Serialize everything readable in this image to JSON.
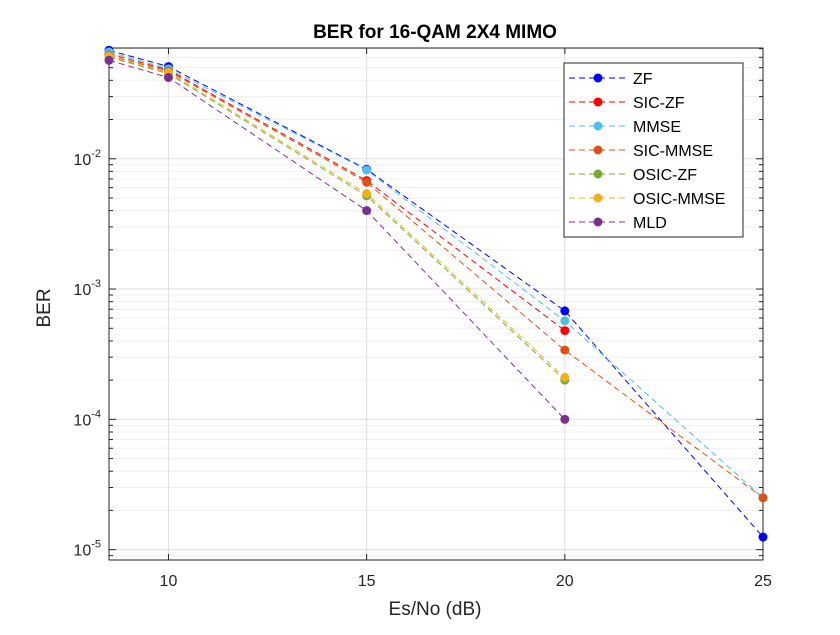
{
  "chart_data": {
    "type": "line",
    "title": "BER for 16-QAM 2X4 MIMO",
    "xlabel": "Es/No (dB)",
    "ylabel": "BER",
    "xscale": "linear",
    "yscale": "log",
    "xlim": [
      8.5,
      25
    ],
    "ylim": [
      8.33e-06,
      0.0708
    ],
    "grid": true,
    "legend_position": "top-right",
    "x_ticks": [
      10,
      15,
      20,
      25
    ],
    "x_tick_labels": [
      "10",
      "15",
      "20",
      "25"
    ],
    "y_ticks": [
      1e-05,
      0.0001,
      0.001,
      0.01
    ],
    "y_tick_labels": [
      {
        "base": "10",
        "exp": "-5"
      },
      {
        "base": "10",
        "exp": "-4"
      },
      {
        "base": "10",
        "exp": "-3"
      },
      {
        "base": "10",
        "exp": "-2"
      }
    ],
    "series": [
      {
        "name": "ZF",
        "color": "#0000ff",
        "x": [
          8.5,
          10,
          15,
          20,
          25
        ],
        "y": [
          0.068,
          0.051,
          0.0083,
          0.00068,
          1.25e-05
        ]
      },
      {
        "name": "SIC-ZF",
        "color": "#ff0000",
        "x": [
          8.5,
          10,
          15,
          20
        ],
        "y": [
          0.064,
          0.048,
          0.0068,
          0.00048
        ]
      },
      {
        "name": "MMSE",
        "color": "#4dbeee",
        "x": [
          8.5,
          10,
          15,
          20,
          25
        ],
        "y": [
          0.066,
          0.049,
          0.0082,
          0.00057,
          2.5e-05
        ]
      },
      {
        "name": "SIC-MMSE",
        "color": "#d95319",
        "x": [
          8.5,
          10,
          15,
          20,
          25
        ],
        "y": [
          0.062,
          0.047,
          0.0066,
          0.00034,
          2.5e-05
        ]
      },
      {
        "name": "OSIC-ZF",
        "color": "#77ac30",
        "x": [
          8.5,
          10,
          15,
          20
        ],
        "y": [
          0.06,
          0.045,
          0.0052,
          0.0002
        ]
      },
      {
        "name": "OSIC-MMSE",
        "color": "#edb120",
        "x": [
          8.5,
          10,
          15,
          20
        ],
        "y": [
          0.061,
          0.046,
          0.0054,
          0.00021
        ]
      },
      {
        "name": "MLD",
        "color": "#7e2f8e",
        "x": [
          8.5,
          10,
          15,
          20
        ],
        "y": [
          0.057,
          0.042,
          0.004,
          0.0001
        ]
      }
    ]
  }
}
